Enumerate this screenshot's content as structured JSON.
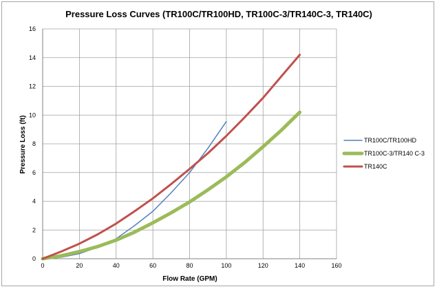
{
  "chart_data": {
    "type": "line",
    "title": "Pressure Loss Curves (TR100C/TR100HD, TR100C-3/TR140C-3, TR140C)",
    "xlabel": "Flow Rate (GPM)",
    "ylabel": "Pressure Loss (ft)",
    "xlim": [
      0,
      160
    ],
    "ylim": [
      0,
      16
    ],
    "xticks": [
      "0",
      "20",
      "40",
      "60",
      "80",
      "100",
      "120",
      "140",
      "160"
    ],
    "yticks": [
      "0",
      "2",
      "4",
      "6",
      "8",
      "10",
      "12",
      "14",
      "16"
    ],
    "grid": true,
    "legend_position": "right",
    "series": [
      {
        "name": "TR100C/TR100HD",
        "color": "#4f81bd",
        "x": [
          0,
          10,
          20,
          30,
          40,
          50,
          60,
          70,
          80,
          90,
          100
        ],
        "y": [
          0,
          0.1,
          0.35,
          0.8,
          1.4,
          2.3,
          3.3,
          4.6,
          6.0,
          7.7,
          9.55
        ]
      },
      {
        "name": "TR100C-3/TR140 C-3",
        "color": "#9bbb59",
        "x": [
          0,
          10,
          20,
          30,
          40,
          50,
          60,
          70,
          80,
          90,
          100,
          110,
          120,
          130,
          140
        ],
        "y": [
          0,
          0.2,
          0.5,
          0.85,
          1.3,
          1.85,
          2.5,
          3.2,
          3.95,
          4.8,
          5.7,
          6.7,
          7.8,
          8.95,
          10.2
        ]
      },
      {
        "name": "TR140C",
        "color": "#c0504d",
        "x": [
          0,
          10,
          20,
          30,
          40,
          50,
          60,
          70,
          80,
          90,
          100,
          110,
          120,
          130,
          140
        ],
        "y": [
          0,
          0.5,
          1.05,
          1.7,
          2.45,
          3.3,
          4.2,
          5.2,
          6.25,
          7.35,
          8.55,
          9.85,
          11.2,
          12.7,
          14.2
        ]
      }
    ]
  }
}
